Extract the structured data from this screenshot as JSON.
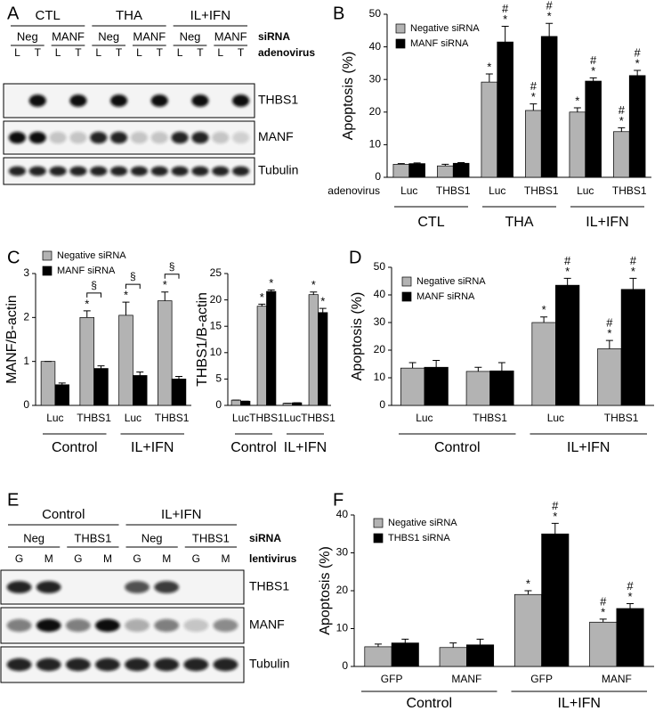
{
  "panels": [
    "A",
    "B",
    "C",
    "D",
    "E",
    "F"
  ],
  "blots": [
    {
      "groups": [
        "CTL",
        "THA",
        "IL+IFN"
      ],
      "sirna_label": "siRNA",
      "sirna": [
        "Neg",
        "MANF",
        "Neg",
        "MANF",
        "Neg",
        "MANF"
      ],
      "vector_label": "adenovirus",
      "vectors": [
        "L",
        "T",
        "L",
        "T",
        "L",
        "T",
        "L",
        "T",
        "L",
        "T",
        "L",
        "T"
      ],
      "bands": [
        "THBS1",
        "MANF",
        "Tubulin"
      ]
    },
    {
      "groups": [
        "Control",
        "IL+IFN"
      ],
      "sirna_label": "siRNA",
      "sirna": [
        "Neg",
        "THBS1",
        "Neg",
        "THBS1"
      ],
      "vector_label": "lentivirus",
      "vectors": [
        "G",
        "M",
        "G",
        "M",
        "G",
        "M",
        "G",
        "M"
      ],
      "bands": [
        "THBS1",
        "MANF",
        "Tubulin"
      ]
    }
  ],
  "chart_data": [
    {
      "type": "bar",
      "ylabel": "Apoptosis (%)",
      "ylim": [
        0,
        50
      ],
      "yticks": [
        0,
        10,
        20,
        30,
        40,
        50
      ],
      "legend": "upper left",
      "row_label": "adenovirus",
      "categories": [
        "Luc",
        "THBS1",
        "Luc",
        "THBS1",
        "Luc",
        "THBS1"
      ],
      "groups": [
        "CTL",
        "THA",
        "IL+IFN"
      ],
      "series": [
        {
          "name": "Negative siRNA",
          "color": "#b3b3b3",
          "values": [
            4,
            3.5,
            29.2,
            20.5,
            20,
            14
          ],
          "errors": [
            0.2,
            0.5,
            2.5,
            2,
            1.3,
            1.2
          ],
          "sig": [
            null,
            null,
            [
              "*"
            ],
            [
              "#",
              "*"
            ],
            [
              "*"
            ],
            [
              "#",
              "*"
            ]
          ]
        },
        {
          "name": "MANF siRNA",
          "color": "#000000",
          "values": [
            4.2,
            4.3,
            41.5,
            43.2,
            29.5,
            31.2
          ],
          "errors": [
            0.2,
            0.2,
            4.8,
            4,
            1,
            1.6
          ],
          "sig": [
            null,
            null,
            [
              "#",
              "*"
            ],
            [
              "#",
              "*"
            ],
            [
              "#",
              "*"
            ],
            [
              "#",
              "*"
            ]
          ]
        }
      ]
    },
    {
      "type": "bar",
      "ylabel": "MANF/B-actin",
      "ylim": [
        0,
        3
      ],
      "yticks": [
        0,
        1,
        2,
        3
      ],
      "legend": "upper left",
      "categories": [
        "Luc",
        "THBS1",
        "Luc",
        "THBS1"
      ],
      "groups": [
        "Control",
        "IL+IFN"
      ],
      "brackets": [
        null,
        "§",
        "§",
        "§"
      ],
      "series": [
        {
          "name": "Negative siRNA",
          "color": "#b3b3b3",
          "values": [
            1.0,
            2.0,
            2.05,
            2.38
          ],
          "errors": [
            0,
            0.15,
            0.3,
            0.2
          ],
          "sig": [
            null,
            [
              "*"
            ],
            [
              "*"
            ],
            [
              "*"
            ]
          ]
        },
        {
          "name": "MANF siRNA",
          "color": "#000000",
          "values": [
            0.47,
            0.84,
            0.68,
            0.6
          ],
          "errors": [
            0.04,
            0.06,
            0.08,
            0.06
          ],
          "sig": [
            null,
            null,
            null,
            null
          ]
        }
      ]
    },
    {
      "type": "bar",
      "ylabel": "THBS1/B-actin",
      "ylim": [
        0,
        25
      ],
      "yticks": [
        0,
        5,
        10,
        15,
        20,
        25
      ],
      "categories": [
        "Luc",
        "THBS1",
        "Luc",
        "THBS1"
      ],
      "groups": [
        "Control",
        "IL+IFN"
      ],
      "series": [
        {
          "color": "#b3b3b3",
          "values": [
            1.0,
            18.8,
            0.4,
            21
          ],
          "errors": [
            0,
            0.4,
            0,
            0.5
          ],
          "sig": [
            null,
            [
              "*"
            ],
            null,
            [
              "*"
            ]
          ]
        },
        {
          "color": "#000000",
          "values": [
            0.8,
            21.6,
            0.5,
            17.6
          ],
          "errors": [
            0,
            0.3,
            0,
            0.8
          ],
          "sig": [
            null,
            [
              "*"
            ],
            null,
            [
              "*"
            ]
          ]
        }
      ]
    },
    {
      "type": "bar",
      "ylabel": "Apoptosis (%)",
      "ylim": [
        0,
        50
      ],
      "yticks": [
        0,
        10,
        20,
        30,
        40,
        50
      ],
      "legend": "upper left",
      "categories": [
        "Luc",
        "THBS1",
        "Luc",
        "THBS1"
      ],
      "groups": [
        "Control",
        "IL+IFN"
      ],
      "series": [
        {
          "name": "Negative siRNA",
          "color": "#b3b3b3",
          "values": [
            13.5,
            12.3,
            30,
            20.5
          ],
          "errors": [
            2,
            1.5,
            2,
            3
          ],
          "sig": [
            null,
            null,
            [
              "*"
            ],
            [
              "#",
              "*"
            ]
          ]
        },
        {
          "name": "MANF siRNA",
          "color": "#000000",
          "values": [
            13.8,
            12.5,
            43.5,
            42
          ],
          "errors": [
            2.5,
            3,
            2.5,
            4
          ],
          "sig": [
            null,
            null,
            [
              "#",
              "*"
            ],
            [
              "#",
              "*"
            ]
          ]
        }
      ]
    },
    {
      "type": "bar",
      "ylabel": "Apoptosis (%)",
      "ylim": [
        0,
        40
      ],
      "yticks": [
        0,
        10,
        20,
        30,
        40
      ],
      "legend": "upper left",
      "categories": [
        "GFP",
        "MANF",
        "GFP",
        "MANF"
      ],
      "groups": [
        "Control",
        "IL+IFN"
      ],
      "series": [
        {
          "name": "Negative siRNA",
          "color": "#b3b3b3",
          "values": [
            5.2,
            5,
            19,
            11.7
          ],
          "errors": [
            0.7,
            1.2,
            1,
            0.8
          ],
          "sig": [
            null,
            null,
            [
              "*"
            ],
            [
              "#",
              "*"
            ]
          ]
        },
        {
          "name": "THBS1 siRNA",
          "color": "#000000",
          "values": [
            6.2,
            5.7,
            35,
            15.3
          ],
          "errors": [
            1,
            1.5,
            2.8,
            1.3
          ],
          "sig": [
            null,
            null,
            [
              "#",
              "*"
            ],
            [
              "#",
              "*"
            ]
          ]
        }
      ]
    }
  ]
}
